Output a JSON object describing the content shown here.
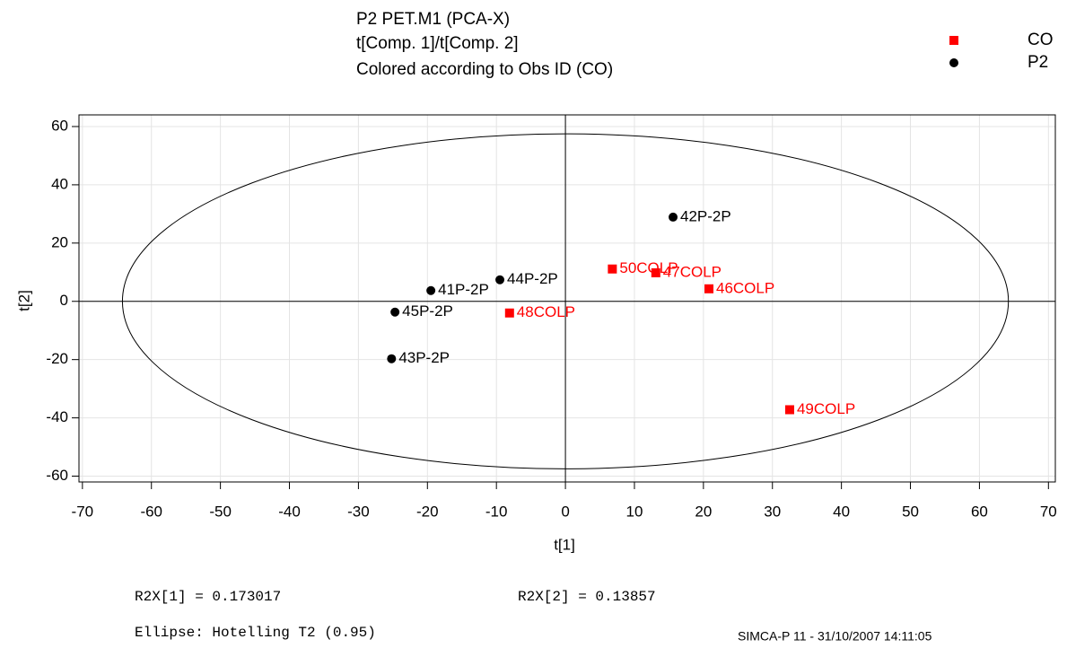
{
  "chart_data": {
    "type": "scatter",
    "title": [
      "P2 PET.M1 (PCA-X)",
      "t[Comp. 1]/t[Comp. 2]",
      "Colored according to Obs ID (CO)"
    ],
    "x_label": "t[1]",
    "y_label": "t[2]",
    "xlim": [
      -70.5,
      71
    ],
    "ylim": [
      -62,
      64
    ],
    "xticks": [
      -70,
      -60,
      -50,
      -40,
      -30,
      -20,
      -10,
      0,
      10,
      20,
      30,
      40,
      50,
      60,
      70
    ],
    "yticks": [
      -60,
      -40,
      -20,
      0,
      20,
      40,
      60
    ],
    "grid": true,
    "legend": "top-right",
    "ellipse": {
      "a": 64.2,
      "b": 57.5
    },
    "series": [
      {
        "name": "CO",
        "color": "#ff0000",
        "marker": "square",
        "x": [
          6.8,
          13.1,
          20.8,
          -8.1,
          32.5
        ],
        "values": [
          11.1,
          9.8,
          4.3,
          -4.0,
          -37.2
        ],
        "labels": [
          "50COLP",
          "47COLP",
          "46COLP",
          "48COLP",
          "49COLP"
        ]
      },
      {
        "name": "P2",
        "color": "#000000",
        "marker": "circle",
        "x": [
          15.6,
          -9.5,
          -19.5,
          -24.7,
          -25.2
        ],
        "values": [
          28.9,
          7.4,
          3.7,
          -3.7,
          -19.7
        ],
        "labels": [
          "42P-2P",
          "44P-2P",
          "41P-2P",
          "45P-2P",
          "43P-2P"
        ]
      }
    ],
    "annotations": [
      "R2X[1] = 0.173017",
      "R2X[2] = 0.13857",
      "Ellipse: Hotelling T2 (0.95)",
      "SIMCA-P 11 - 31/10/2007 14:11:05"
    ]
  }
}
